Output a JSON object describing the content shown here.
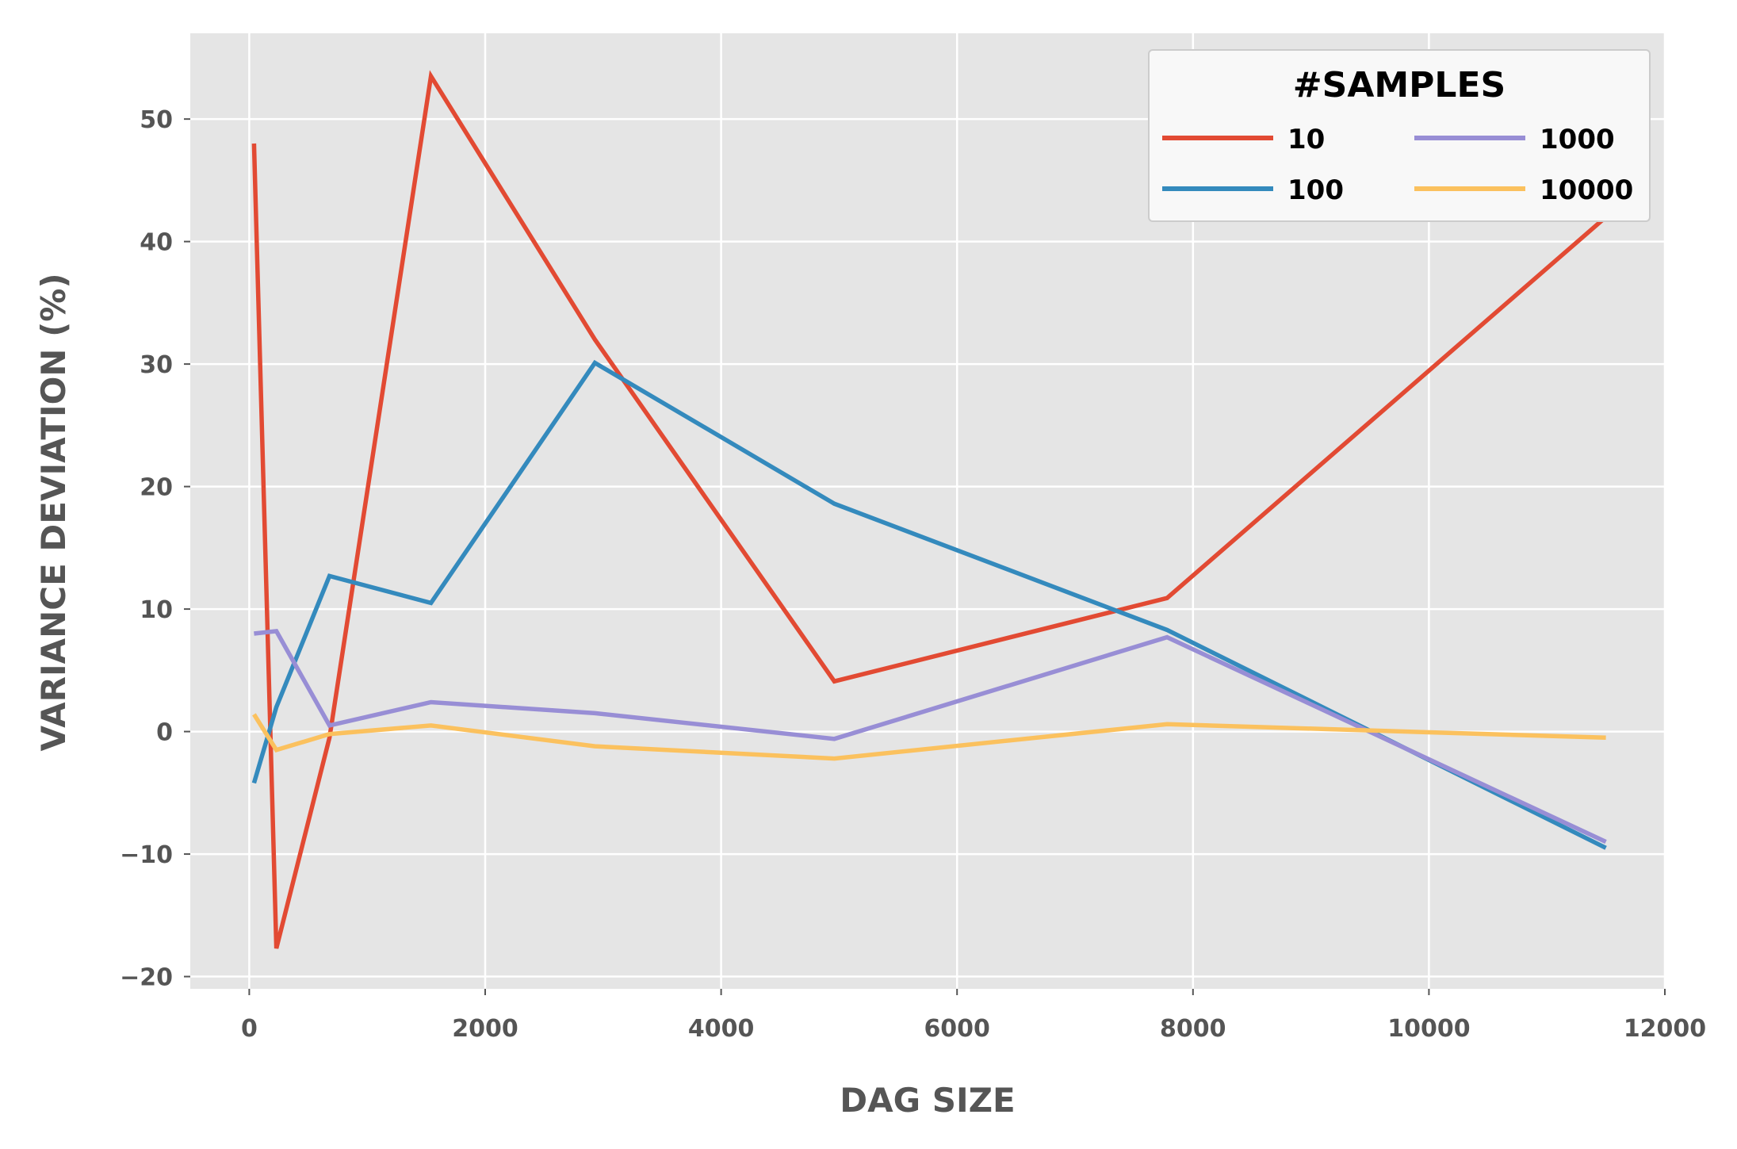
{
  "chart_data": {
    "type": "line",
    "title": "",
    "xlabel": "DAG SIZE",
    "ylabel": "VARIANCE DEVIATION (%)",
    "xlim": [
      -500,
      12000
    ],
    "ylim": [
      -21,
      57
    ],
    "xticks": [
      0,
      2000,
      4000,
      6000,
      8000,
      10000,
      12000
    ],
    "yticks": [
      -20,
      -10,
      0,
      10,
      20,
      30,
      40,
      50
    ],
    "x": [
      40,
      230,
      680,
      1540,
      2930,
      4960,
      7780,
      11500
    ],
    "grid": true,
    "legend": {
      "title": "#SAMPLES",
      "placement": "top-right",
      "columns": 2
    },
    "series": [
      {
        "name": "10",
        "color": "#E24A33",
        "values": [
          48.0,
          -17.7,
          -0.5,
          53.5,
          32.0,
          4.1,
          10.9,
          42.0
        ]
      },
      {
        "name": "100",
        "color": "#348ABD",
        "values": [
          -4.2,
          2.0,
          12.7,
          10.5,
          30.1,
          18.6,
          8.3,
          -9.5
        ]
      },
      {
        "name": "1000",
        "color": "#988ED5",
        "values": [
          8.0,
          8.2,
          0.5,
          2.4,
          1.5,
          -0.6,
          7.7,
          -9.0
        ]
      },
      {
        "name": "10000",
        "color": "#FBC15E",
        "values": [
          1.4,
          -1.5,
          -0.2,
          0.5,
          -1.2,
          -2.2,
          0.6,
          -0.5
        ]
      }
    ]
  }
}
